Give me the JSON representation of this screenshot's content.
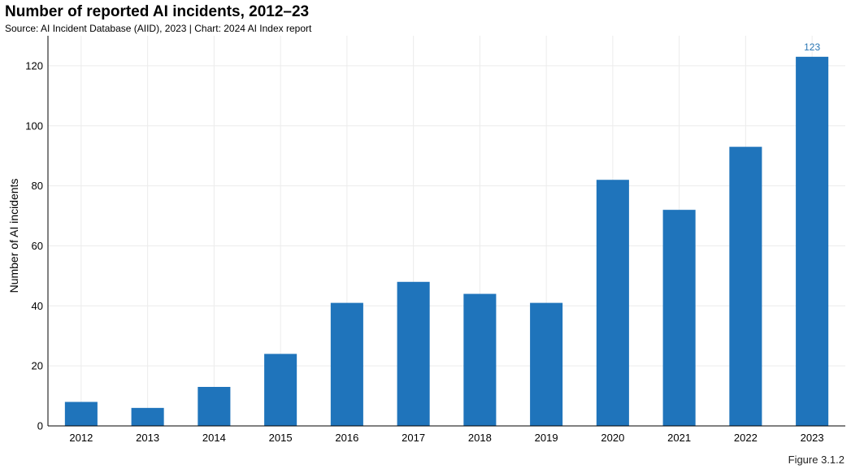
{
  "figure_label": "Figure 3.1.2",
  "chart_data": {
    "type": "bar",
    "title": "Number of reported AI incidents, 2012–23",
    "subtitle": "Source: AI Incident Database (AIID), 2023 | Chart: 2024 AI Index report",
    "xlabel": "",
    "ylabel": "Number of AI incidents",
    "categories": [
      "2012",
      "2013",
      "2014",
      "2015",
      "2016",
      "2017",
      "2018",
      "2019",
      "2020",
      "2021",
      "2022",
      "2023"
    ],
    "values": [
      8,
      6,
      13,
      24,
      41,
      48,
      44,
      41,
      82,
      72,
      93,
      123
    ],
    "data_labels": [
      null,
      null,
      null,
      null,
      null,
      null,
      null,
      null,
      null,
      null,
      null,
      "123"
    ],
    "ylim": [
      0,
      130
    ],
    "yticks": [
      0,
      20,
      40,
      60,
      80,
      100,
      120
    ],
    "grid": true,
    "bar_color": "#1f74bb",
    "label_color": "#2a77b5"
  }
}
